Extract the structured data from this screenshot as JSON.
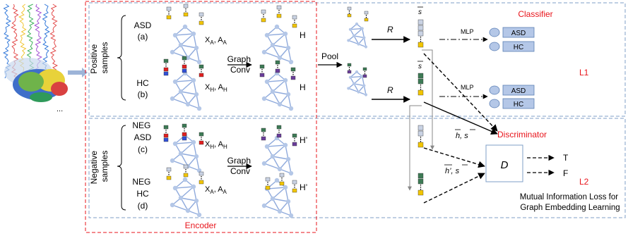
{
  "panels": {
    "positive": {
      "group_label": "Positive samples",
      "group_label_line1": "Positive",
      "group_label_line2": "samples",
      "asd_name": "ASD",
      "asd_tag": "(a)",
      "asd_feat_main": "X",
      "asd_feat_sub1": "A",
      "asd_feat_sep": ", A",
      "asd_feat_sub2": "A",
      "hc_name": "HC",
      "hc_tag": "(b)",
      "hc_feat_main": "X",
      "hc_feat_sub1": "H",
      "hc_feat_sep": ", A",
      "hc_feat_sub2": "H",
      "conv_line1": "Graph",
      "conv_line2": "Conv",
      "out_asd": "H",
      "out_hc": "H"
    },
    "negative": {
      "group_label_line1": "Negative",
      "group_label_line2": "samples",
      "asd_name_line1": "NEG",
      "asd_name_line2": "ASD",
      "asd_tag": "(c)",
      "asd_feat_main": "X",
      "asd_feat_sub1": "H",
      "asd_feat_sep": ", A",
      "asd_feat_sub2": "H",
      "hc_name_line1": "NEG",
      "hc_name_line2": "HC",
      "hc_tag": "(d)",
      "hc_feat_main": "X",
      "hc_feat_sub1": "A",
      "hc_feat_sep": ", A",
      "hc_feat_sub2": "A",
      "conv_line1": "Graph",
      "conv_line2": "Conv",
      "out_asd": "H’",
      "out_hc": "H’"
    }
  },
  "pool_label": "Pool",
  "readout_label_1": "R",
  "readout_label_2": "R",
  "summary_vec_1": "s",
  "summary_vec_2": "s",
  "classifier": {
    "title": "Classifier",
    "mlp_1": "MLP",
    "mlp_2": "MLP",
    "box_asd_1": "ASD",
    "box_hc_1": "HC",
    "box_asd_2": "ASD",
    "box_hc_2": "HC",
    "loss": "L1"
  },
  "discriminator": {
    "title": "Discriminator",
    "box_label": "D",
    "pair_pos": "h, s",
    "pair_neg": "h’, s",
    "out_true": "T",
    "out_false": "F",
    "loss": "L2",
    "caption_line1": "Mutual Information Loss for",
    "caption_line2": "Graph Embedding Learning"
  },
  "encoder_label": "Encoder",
  "brain_ellipsis": "...",
  "colors": {
    "node": "#b4c7e7",
    "edge": "#8faadc",
    "red_text": "#e8141b",
    "panel_border": "#7f9fc7",
    "encoder_border": "#e8141b",
    "feat_yellow": "#f2c500",
    "feat_green": "#3d7a55",
    "feat_purple": "#6a3d9a",
    "feat_red": "#e01f1f",
    "feat_blue": "#3050d8",
    "feat_gray": "#c9d2e3"
  }
}
